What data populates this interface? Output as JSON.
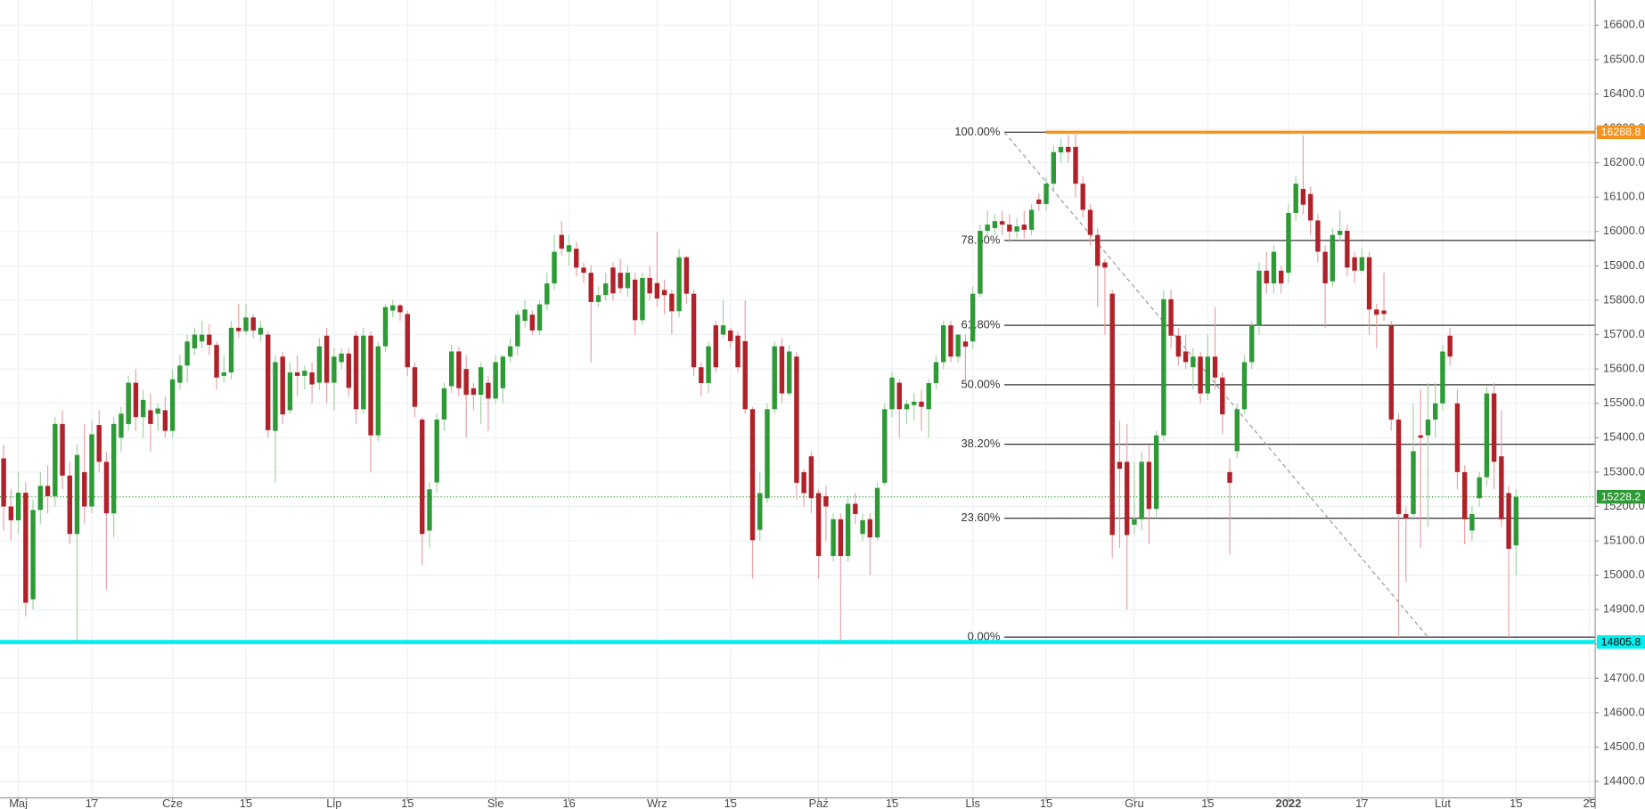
{
  "chart_data": {
    "type": "candlestick",
    "up_color": "#2e9a36",
    "down_color": "#b0222a",
    "up_wick": "#9fd3a0",
    "down_wick": "#e8a0a6",
    "grid": true,
    "xlim": [
      -0.5,
      216.7
    ],
    "xticks": [
      {
        "value": 2,
        "label": "Maj"
      },
      {
        "value": 12,
        "label": "17"
      },
      {
        "value": 23,
        "label": "Cze"
      },
      {
        "value": 33,
        "label": "15"
      },
      {
        "value": 45,
        "label": "Lip"
      },
      {
        "value": 55,
        "label": "15"
      },
      {
        "value": 67,
        "label": "Sie"
      },
      {
        "value": 77,
        "label": "16"
      },
      {
        "value": 89,
        "label": "Wrz"
      },
      {
        "value": 99,
        "label": "15"
      },
      {
        "value": 111,
        "label": "Paź"
      },
      {
        "value": 121,
        "label": "15"
      },
      {
        "value": 132,
        "label": "Lis"
      },
      {
        "value": 142,
        "label": "15"
      },
      {
        "value": 154,
        "label": "Gru"
      },
      {
        "value": 164,
        "label": "15"
      },
      {
        "value": 175,
        "label": "2022"
      },
      {
        "value": 185,
        "label": "17"
      },
      {
        "value": 196,
        "label": "Lut"
      },
      {
        "value": 206,
        "label": "15"
      },
      {
        "value": 216,
        "label": "25"
      }
    ],
    "ylim": [
      14354,
      16673
    ],
    "yticks": [
      {
        "value": 14400,
        "label": "14400.0"
      },
      {
        "value": 14500,
        "label": "14500.0"
      },
      {
        "value": 14600,
        "label": "14600.0"
      },
      {
        "value": 14700,
        "label": "14700.0"
      },
      {
        "value": 14800,
        "label": "14800.0"
      },
      {
        "value": 14900,
        "label": "14900.0"
      },
      {
        "value": 15000,
        "label": "15000.0"
      },
      {
        "value": 15100,
        "label": "15100.0"
      },
      {
        "value": 15200,
        "label": "15200.0"
      },
      {
        "value": 15300,
        "label": "15300.0"
      },
      {
        "value": 15400,
        "label": "15400.0"
      },
      {
        "value": 15500,
        "label": "15500.0"
      },
      {
        "value": 15600,
        "label": "15600.0"
      },
      {
        "value": 15700,
        "label": "15700.0"
      },
      {
        "value": 15800,
        "label": "15800.0"
      },
      {
        "value": 15900,
        "label": "15900.0"
      },
      {
        "value": 16000,
        "label": "16000.0"
      },
      {
        "value": 16100,
        "label": "16100.0"
      },
      {
        "value": 16200,
        "label": "16200.0"
      },
      {
        "value": 16300,
        "label": "16300.0"
      },
      {
        "value": 16400,
        "label": "16400.0"
      },
      {
        "value": 16500,
        "label": "16500.0"
      },
      {
        "value": 16600,
        "label": "16600.0"
      }
    ],
    "hlines": [
      {
        "value": 16288.8,
        "color": "#f7931a",
        "from": 142,
        "width": 3,
        "style": "solid"
      },
      {
        "value": 14805.8,
        "color": "#00f0f0",
        "from": -0.5,
        "width": 4,
        "style": "solid"
      },
      {
        "value": 15228.2,
        "color": "#2e9a36",
        "from": -0.5,
        "width": 1,
        "style": "dotted"
      }
    ],
    "fib": {
      "start": 136.3,
      "end": 194,
      "color": "#333333",
      "levels": [
        {
          "value": 16288.8,
          "label": "100.00%"
        },
        {
          "value": 15974,
          "label": "78.60%"
        },
        {
          "value": 15727,
          "label": "61.80%"
        },
        {
          "value": 15554,
          "label": "50.00%"
        },
        {
          "value": 15381,
          "label": "38.20%"
        },
        {
          "value": 15166,
          "label": "23.60%"
        },
        {
          "value": 14820,
          "label": "0.00%"
        }
      ]
    },
    "candles": [
      [
        15340,
        15380,
        15130,
        15200
      ],
      [
        15200,
        15250,
        15100,
        15160
      ],
      [
        15160,
        15300,
        15120,
        15240
      ],
      [
        15240,
        15270,
        14880,
        14920
      ],
      [
        14930,
        15220,
        14900,
        15190
      ],
      [
        15190,
        15300,
        15150,
        15260
      ],
      [
        15260,
        15320,
        15180,
        15230
      ],
      [
        15230,
        15460,
        15200,
        15440
      ],
      [
        15440,
        15480,
        15250,
        15290
      ],
      [
        15290,
        15330,
        15090,
        15120
      ],
      [
        15120,
        15380,
        14810,
        15350
      ],
      [
        15300,
        15440,
        15150,
        15200
      ],
      [
        15200,
        15450,
        15180,
        15410
      ],
      [
        15437,
        15480,
        15300,
        15330
      ],
      [
        15330,
        15360,
        14960,
        15180
      ],
      [
        15180,
        15460,
        15110,
        15440
      ],
      [
        15400,
        15490,
        15360,
        15470
      ],
      [
        15440,
        15580,
        15420,
        15560
      ],
      [
        15560,
        15600,
        15420,
        15460
      ],
      [
        15460,
        15540,
        15400,
        15510
      ],
      [
        15480,
        15530,
        15360,
        15440
      ],
      [
        15470,
        15500,
        15420,
        15485
      ],
      [
        15480,
        15520,
        15400,
        15420
      ],
      [
        15420,
        15600,
        15400,
        15570
      ],
      [
        15560,
        15640,
        15540,
        15610
      ],
      [
        15610,
        15700,
        15560,
        15680
      ],
      [
        15660,
        15720,
        15640,
        15700
      ],
      [
        15680,
        15740,
        15660,
        15700
      ],
      [
        15700,
        15730,
        15640,
        15670
      ],
      [
        15670,
        15680,
        15540,
        15575
      ],
      [
        15580,
        15640,
        15560,
        15590
      ],
      [
        15590,
        15740,
        15570,
        15720
      ],
      [
        15720,
        15790,
        15690,
        15710
      ],
      [
        15710,
        15790,
        15700,
        15750
      ],
      [
        15750,
        15760,
        15690,
        15712
      ],
      [
        15700,
        15740,
        15680,
        15720
      ],
      [
        15700,
        15710,
        15400,
        15422
      ],
      [
        15420,
        15640,
        15270,
        15620
      ],
      [
        15636,
        15650,
        15440,
        15468
      ],
      [
        15480,
        15620,
        15470,
        15590
      ],
      [
        15590,
        15640,
        15520,
        15580
      ],
      [
        15580,
        15610,
        15540,
        15595
      ],
      [
        15590,
        15620,
        15500,
        15555
      ],
      [
        15560,
        15690,
        15540,
        15666
      ],
      [
        15697,
        15720,
        15500,
        15560
      ],
      [
        15560,
        15660,
        15480,
        15636
      ],
      [
        15620,
        15660,
        15600,
        15645
      ],
      [
        15645,
        15660,
        15520,
        15545
      ],
      [
        15697,
        15710,
        15440,
        15483
      ],
      [
        15483,
        15720,
        15470,
        15697
      ],
      [
        15697,
        15710,
        15300,
        15407
      ],
      [
        15407,
        15680,
        15390,
        15666
      ],
      [
        15666,
        15790,
        15650,
        15780
      ],
      [
        15770,
        15800,
        15750,
        15785
      ],
      [
        15785,
        15790,
        15740,
        15765
      ],
      [
        15760,
        15770,
        15580,
        15605
      ],
      [
        15605,
        15620,
        15460,
        15490
      ],
      [
        15453,
        15460,
        15030,
        15120
      ],
      [
        15130,
        15270,
        15080,
        15250
      ],
      [
        15270,
        15470,
        15240,
        15453
      ],
      [
        15453,
        15560,
        15420,
        15544
      ],
      [
        15550,
        15670,
        15530,
        15651
      ],
      [
        15651,
        15665,
        15520,
        15544
      ],
      [
        15600,
        15640,
        15400,
        15525
      ],
      [
        15544,
        15560,
        15480,
        15525
      ],
      [
        15525,
        15620,
        15440,
        15605
      ],
      [
        15560,
        15580,
        15420,
        15514
      ],
      [
        15514,
        15640,
        15500,
        15620
      ],
      [
        15544,
        15640,
        15500,
        15636
      ],
      [
        15636,
        15690,
        15620,
        15666
      ],
      [
        15666,
        15770,
        15640,
        15758
      ],
      [
        15740,
        15800,
        15720,
        15773
      ],
      [
        15758,
        15770,
        15700,
        15712
      ],
      [
        15712,
        15800,
        15700,
        15788
      ],
      [
        15788,
        15880,
        15770,
        15849
      ],
      [
        15849,
        15990,
        15830,
        15941
      ],
      [
        15990,
        16030,
        15930,
        15950
      ],
      [
        15941,
        15990,
        15900,
        15960
      ],
      [
        15950,
        15970,
        15870,
        15895
      ],
      [
        15895,
        15910,
        15850,
        15880
      ],
      [
        15880,
        15900,
        15620,
        15795
      ],
      [
        15795,
        15840,
        15780,
        15815
      ],
      [
        15815,
        15880,
        15800,
        15849
      ],
      [
        15895,
        15910,
        15800,
        15820
      ],
      [
        15880,
        15920,
        15820,
        15835
      ],
      [
        15835,
        15900,
        15810,
        15880
      ],
      [
        15860,
        15880,
        15700,
        15742
      ],
      [
        15742,
        15880,
        15730,
        15865
      ],
      [
        15865,
        15900,
        15800,
        15820
      ],
      [
        15850,
        16000,
        15780,
        15805
      ],
      [
        15830,
        15860,
        15760,
        15815
      ],
      [
        15819,
        15830,
        15700,
        15768
      ],
      [
        15768,
        15950,
        15750,
        15925
      ],
      [
        15925,
        15930,
        15790,
        15819
      ],
      [
        15819,
        15830,
        15580,
        15605
      ],
      [
        15605,
        15620,
        15520,
        15559
      ],
      [
        15559,
        15680,
        15530,
        15666
      ],
      [
        15727,
        15740,
        15590,
        15605
      ],
      [
        15700,
        15800,
        15690,
        15727
      ],
      [
        15712,
        15720,
        15660,
        15681
      ],
      [
        15697,
        15710,
        15590,
        15605
      ],
      [
        15681,
        15800,
        15470,
        15483
      ],
      [
        15483,
        15490,
        14990,
        15102
      ],
      [
        15132,
        15300,
        15100,
        15239
      ],
      [
        15224,
        15500,
        15210,
        15483
      ],
      [
        15483,
        15680,
        15470,
        15666
      ],
      [
        15666,
        15690,
        15500,
        15529
      ],
      [
        15529,
        15670,
        15520,
        15651
      ],
      [
        15636,
        15650,
        15220,
        15269
      ],
      [
        15300,
        15310,
        15200,
        15239
      ],
      [
        15346,
        15360,
        15180,
        15224
      ],
      [
        15239,
        15250,
        14990,
        15056
      ],
      [
        15230,
        15260,
        15100,
        15200
      ],
      [
        15056,
        15180,
        15040,
        15163
      ],
      [
        15163,
        15180,
        14810,
        15056
      ],
      [
        15056,
        15230,
        15040,
        15208
      ],
      [
        15208,
        15240,
        15150,
        15178
      ],
      [
        15120,
        15180,
        15100,
        15160
      ],
      [
        15163,
        15180,
        15000,
        15110
      ],
      [
        15110,
        15270,
        15100,
        15254
      ],
      [
        15269,
        15500,
        15260,
        15483
      ],
      [
        15483,
        15590,
        15460,
        15575
      ],
      [
        15560,
        15570,
        15400,
        15483
      ],
      [
        15483,
        15510,
        15440,
        15498
      ],
      [
        15495,
        15530,
        15450,
        15505
      ],
      [
        15505,
        15540,
        15420,
        15490
      ],
      [
        15483,
        15570,
        15400,
        15559
      ],
      [
        15559,
        15640,
        15540,
        15620
      ],
      [
        15620,
        15740,
        15600,
        15727
      ],
      [
        15727,
        15740,
        15620,
        15636
      ],
      [
        15636,
        15700,
        15620,
        15700
      ],
      [
        15680,
        15700,
        15560,
        15665
      ],
      [
        15680,
        15840,
        15660,
        15819
      ],
      [
        15819,
        16020,
        15810,
        16002
      ],
      [
        16002,
        16060,
        15980,
        16020
      ],
      [
        16010,
        16050,
        15990,
        16030
      ],
      [
        16030,
        16060,
        15990,
        16020
      ],
      [
        16020,
        16050,
        15970,
        16000
      ],
      [
        16000,
        16040,
        15980,
        16015
      ],
      [
        16020,
        16060,
        15980,
        16005
      ],
      [
        16005,
        16080,
        15990,
        16063
      ],
      [
        16093,
        16110,
        16060,
        16080
      ],
      [
        16080,
        16160,
        16060,
        16139
      ],
      [
        16139,
        16250,
        16120,
        16231
      ],
      [
        16230,
        16270,
        16200,
        16246
      ],
      [
        16246,
        16280,
        16200,
        16231
      ],
      [
        16246,
        16290,
        16100,
        16139
      ],
      [
        16139,
        16160,
        16040,
        16063
      ],
      [
        16063,
        16080,
        15960,
        15990
      ],
      [
        15990,
        16010,
        15780,
        15900
      ],
      [
        15910,
        15920,
        15700,
        15895
      ],
      [
        15819,
        15830,
        15050,
        15117
      ],
      [
        15330,
        15450,
        15080,
        15310
      ],
      [
        15330,
        15440,
        14900,
        15117
      ],
      [
        15147,
        15330,
        15120,
        15163
      ],
      [
        15163,
        15360,
        15130,
        15330
      ],
      [
        15330,
        15380,
        15090,
        15193
      ],
      [
        15193,
        15420,
        15170,
        15407
      ],
      [
        15407,
        15830,
        15390,
        15803
      ],
      [
        15803,
        15830,
        15660,
        15697
      ],
      [
        15697,
        15720,
        15610,
        15636
      ],
      [
        15651,
        15700,
        15600,
        15620
      ],
      [
        15605,
        15660,
        15540,
        15636
      ],
      [
        15636,
        15650,
        15500,
        15529
      ],
      [
        15529,
        15700,
        15510,
        15636
      ],
      [
        15636,
        15780,
        15540,
        15575
      ],
      [
        15575,
        15590,
        15410,
        15468
      ],
      [
        15300,
        15340,
        15060,
        15269
      ],
      [
        15361,
        15500,
        15340,
        15483
      ],
      [
        15483,
        15640,
        15470,
        15620
      ],
      [
        15620,
        15740,
        15600,
        15727
      ],
      [
        15727,
        15910,
        15700,
        15886
      ],
      [
        15886,
        15940,
        15820,
        15849
      ],
      [
        15849,
        15960,
        15820,
        15941
      ],
      [
        15886,
        15900,
        15820,
        15849
      ],
      [
        15880,
        16080,
        15850,
        16054
      ],
      [
        16054,
        16160,
        16030,
        16139
      ],
      [
        16124,
        16280,
        16050,
        16078
      ],
      [
        16109,
        16130,
        15990,
        16032
      ],
      [
        16032,
        16050,
        15910,
        15941
      ],
      [
        15941,
        15960,
        15720,
        15849
      ],
      [
        15855,
        16010,
        15840,
        15990
      ],
      [
        15990,
        16060,
        15970,
        16002
      ],
      [
        16002,
        16020,
        15870,
        15895
      ],
      [
        15925,
        15940,
        15850,
        15886
      ],
      [
        15886,
        15950,
        15880,
        15925
      ],
      [
        15925,
        15940,
        15700,
        15773
      ],
      [
        15773,
        15790,
        15660,
        15758
      ],
      [
        15770,
        15880,
        15740,
        15760
      ],
      [
        15727,
        15740,
        15420,
        15453
      ],
      [
        15453,
        15470,
        14820,
        15178
      ],
      [
        15178,
        15200,
        14980,
        15165
      ],
      [
        15178,
        15500,
        15160,
        15361
      ],
      [
        15407,
        15540,
        15080,
        15400
      ],
      [
        15407,
        15560,
        15140,
        15453
      ],
      [
        15453,
        15560,
        15400,
        15500
      ],
      [
        15500,
        15670,
        15480,
        15651
      ],
      [
        15697,
        15720,
        15610,
        15636
      ],
      [
        15500,
        15540,
        15250,
        15300
      ],
      [
        15300,
        15320,
        15090,
        15163
      ],
      [
        15130,
        15200,
        15100,
        15178
      ],
      [
        15224,
        15300,
        15200,
        15285
      ],
      [
        15285,
        15550,
        15260,
        15529
      ],
      [
        15529,
        15560,
        15250,
        15330
      ],
      [
        15346,
        15480,
        15140,
        15163
      ],
      [
        15239,
        15260,
        14820,
        15077
      ],
      [
        15087,
        15250,
        15000,
        15228
      ]
    ]
  }
}
